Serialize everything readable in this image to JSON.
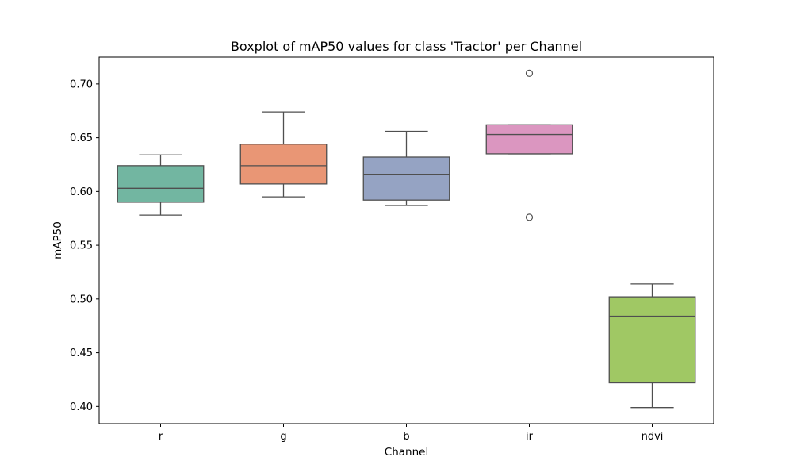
{
  "chart_data": {
    "type": "box",
    "title": "Boxplot of mAP50 values for class 'Tractor' per Channel",
    "xlabel": "Channel",
    "ylabel": "mAP50",
    "ylim": [
      0.384,
      0.725
    ],
    "yticks": [
      0.4,
      0.45,
      0.5,
      0.55,
      0.6,
      0.65,
      0.7
    ],
    "ytick_labels": [
      "0.40",
      "0.45",
      "0.50",
      "0.55",
      "0.60",
      "0.65",
      "0.70"
    ],
    "categories": [
      "r",
      "g",
      "b",
      "ir",
      "ndvi"
    ],
    "colors": [
      "#72b6a1",
      "#e99675",
      "#95a3c3",
      "#db96c0",
      "#a0c864"
    ],
    "boxes": [
      {
        "category": "r",
        "whisker_low": 0.578,
        "q1": 0.59,
        "median": 0.603,
        "q3": 0.624,
        "whisker_high": 0.634,
        "outliers": []
      },
      {
        "category": "g",
        "whisker_low": 0.595,
        "q1": 0.607,
        "median": 0.624,
        "q3": 0.644,
        "whisker_high": 0.674,
        "outliers": []
      },
      {
        "category": "b",
        "whisker_low": 0.587,
        "q1": 0.592,
        "median": 0.616,
        "q3": 0.632,
        "whisker_high": 0.656,
        "outliers": []
      },
      {
        "category": "ir",
        "whisker_low": 0.635,
        "q1": 0.635,
        "median": 0.653,
        "q3": 0.662,
        "whisker_high": 0.662,
        "outliers": [
          0.71,
          0.576
        ]
      },
      {
        "category": "ndvi",
        "whisker_low": 0.399,
        "q1": 0.422,
        "median": 0.484,
        "q3": 0.502,
        "whisker_high": 0.514,
        "outliers": []
      }
    ],
    "grid": false,
    "legend": "none"
  }
}
